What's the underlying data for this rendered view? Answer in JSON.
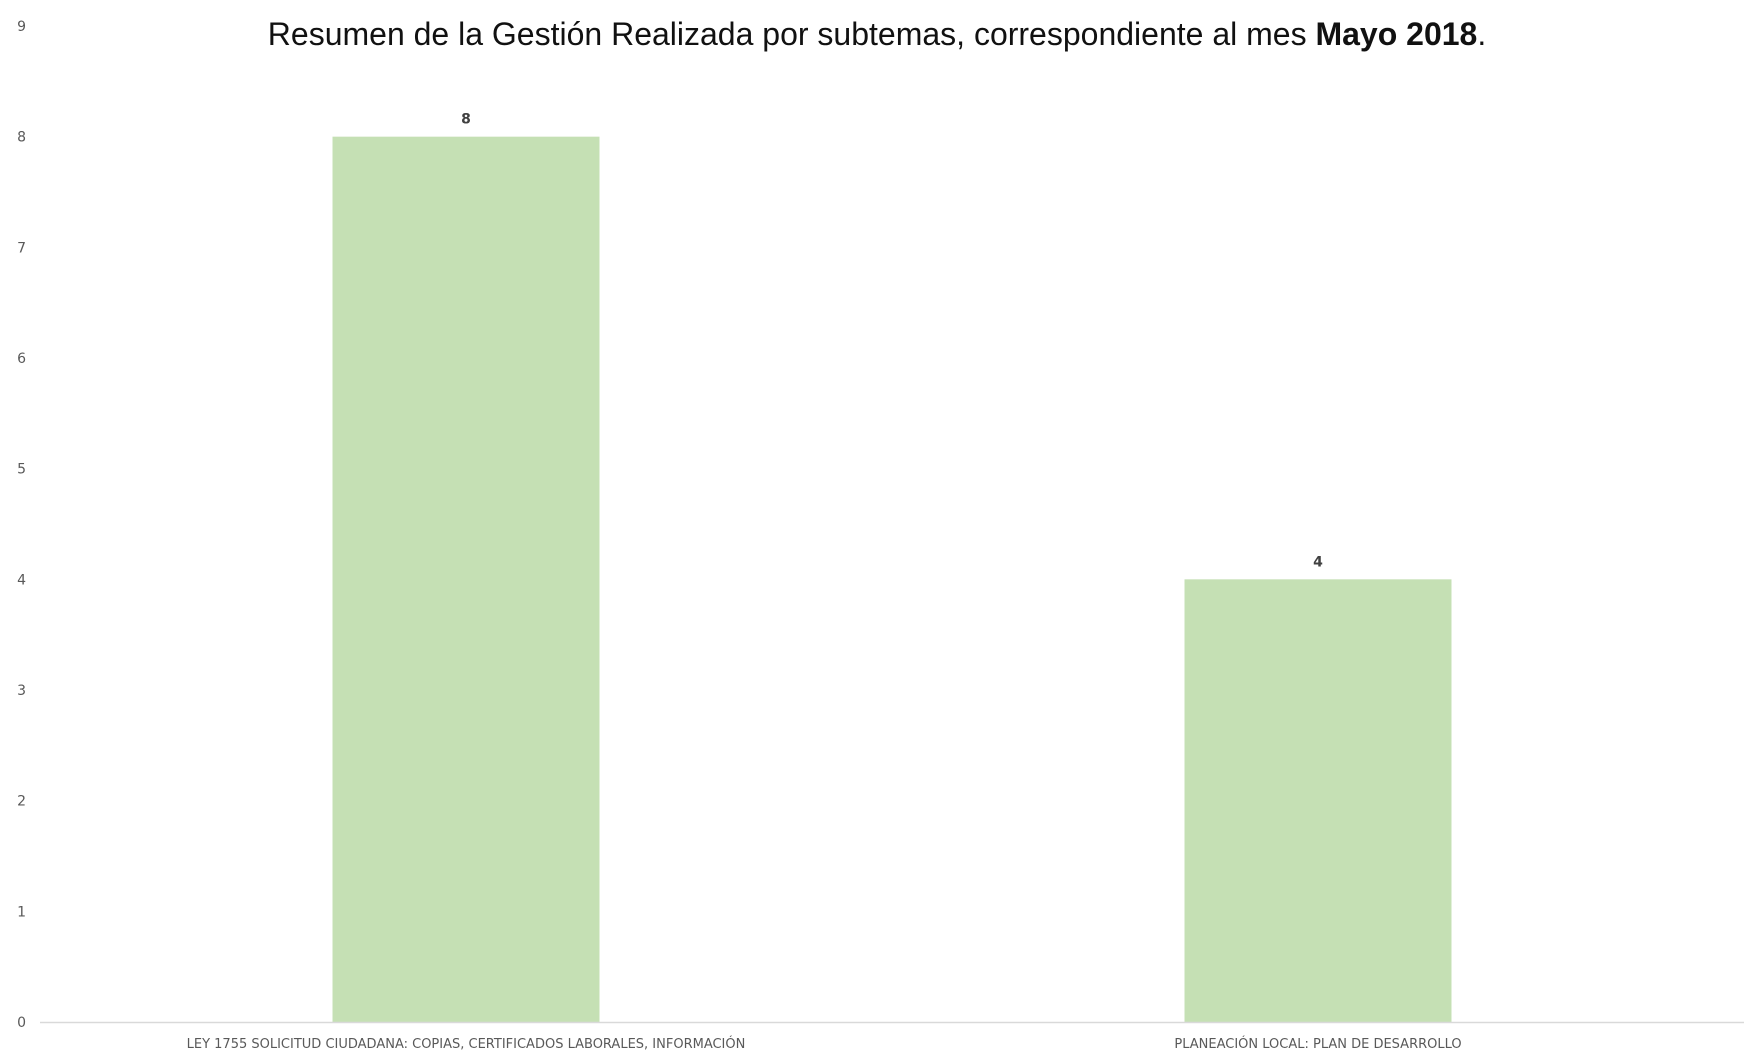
{
  "chart_data": {
    "type": "bar",
    "title": {
      "prefix": "Resumen de  la Gestión Realizada por subtemas, correspondiente al mes ",
      "emphasis": "Mayo 2018",
      "suffix": "."
    },
    "categories": [
      "LEY 1755 SOLICITUD CIUDADANA: COPIAS, CERTIFICADOS LABORALES, INFORMACIÓN",
      "PLANEACIÓN LOCAL: PLAN DE DESARROLLO"
    ],
    "values": [
      8,
      4
    ],
    "data_labels": [
      "8",
      "4"
    ],
    "y_ticks": [
      "0",
      "1",
      "2",
      "3",
      "4",
      "5",
      "6",
      "7",
      "8",
      "9"
    ],
    "ylim": [
      0,
      9
    ],
    "xlabel": "",
    "ylabel": "",
    "grid": false,
    "legend": "none",
    "bar_color": "#c5e0b4",
    "axis_color": "#d9d9d9"
  }
}
